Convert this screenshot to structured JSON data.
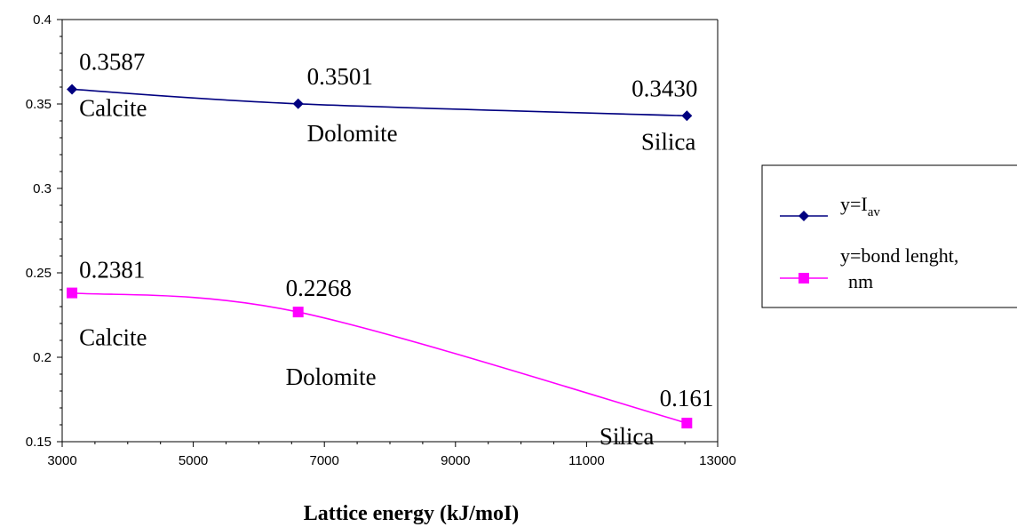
{
  "chart_data": {
    "type": "line",
    "xlabel": "Lattice energy (kJ/moI)",
    "ylabel": "",
    "xlim": [
      3000,
      13000
    ],
    "ylim": [
      0.15,
      0.4
    ],
    "xticks": [
      3000,
      5000,
      7000,
      9000,
      11000,
      13000
    ],
    "yticks": [
      0.15,
      0.2,
      0.25,
      0.3,
      0.35,
      0.4
    ],
    "x_tick_labels": [
      "3000",
      "5000",
      "7000",
      "9000",
      "11000",
      "13000"
    ],
    "y_tick_labels": [
      "0.15",
      "0.2",
      "0.25",
      "0.3",
      "0.35",
      "0.4"
    ],
    "grid": false,
    "legend_position": "right",
    "series": [
      {
        "name_base": "y=I",
        "name_sub": "av",
        "color": "#000080",
        "marker": "diamond",
        "x": [
          3150,
          6600,
          12530
        ],
        "y": [
          0.3587,
          0.3501,
          0.343
        ],
        "point_labels": [
          "Calcite",
          "Dolomite",
          "Silica"
        ],
        "value_labels": [
          "0.3587",
          "0.3501",
          "0.3430"
        ]
      },
      {
        "name_line1": "y=bond lenght,",
        "name_line2": "nm",
        "color": "#FF00FF",
        "marker": "square",
        "x": [
          3150,
          6600,
          12530
        ],
        "y": [
          0.2381,
          0.2268,
          0.161
        ],
        "point_labels": [
          "Calcite",
          "Dolomite",
          "Silica"
        ],
        "value_labels": [
          "0.2381",
          "0.2268",
          "0.161"
        ]
      }
    ]
  }
}
